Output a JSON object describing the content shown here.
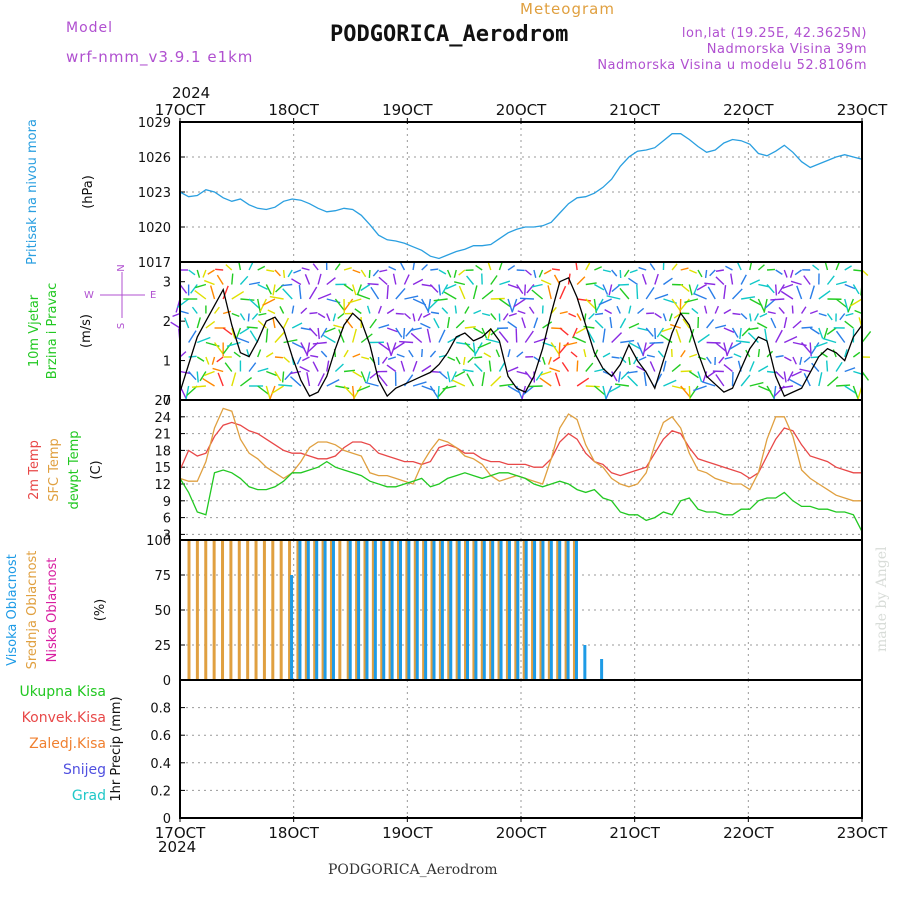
{
  "header": {
    "model_label": "Model",
    "model_value": "wrf-nmm_v3.9.1 e1km",
    "subtitle": "Meteogram",
    "title": "PODGORICA_Aerodrom",
    "lonlat": "lon,lat (19.25E, 42.3625N)",
    "altitude": "Nadmorska Visina 39m",
    "model_altitude": "Nadmorska Visina u modelu 52.8106m",
    "footer": "PODGORICA_Aerodrom",
    "credit": "made by Angel",
    "year_top": "2024",
    "year_bottom": "2024"
  },
  "colors": {
    "pressure": "#2a9fe0",
    "wind_speed": "#000000",
    "temp2m": "#e84848",
    "sfc_temp": "#e0a040",
    "dewpt": "#22c822",
    "high_cloud": "#1e9be6",
    "mid_cloud": "#e0a040",
    "low_cloud": "#d81ea0",
    "rain_total": "#22c822",
    "rain_conv": "#e84848",
    "rain_frz": "#f08030",
    "snow": "#5050e0",
    "grad": "#20c8c8"
  },
  "chart_data": {
    "type": "line",
    "x_labels": [
      "17OCT",
      "18OCT",
      "19OCT",
      "20OCT",
      "21OCT",
      "22OCT",
      "23OCT"
    ],
    "panels": [
      {
        "id": "pressure",
        "labels": [
          "Pritisak na nivou mora"
        ],
        "unit": "(hPa)",
        "ylim": [
          1017,
          1029
        ],
        "ticks": [
          1017,
          1020,
          1023,
          1026,
          1029
        ],
        "series": [
          {
            "name": "Pritisak na nivou mora",
            "color_key": "pressure",
            "values": [
              1023.0,
              1022.6,
              1022.7,
              1023.2,
              1023.0,
              1022.5,
              1022.2,
              1022.4,
              1021.9,
              1021.6,
              1021.5,
              1021.7,
              1022.2,
              1022.4,
              1022.3,
              1022.0,
              1021.6,
              1021.3,
              1021.4,
              1021.6,
              1021.5,
              1021.0,
              1020.2,
              1019.3,
              1018.9,
              1018.8,
              1018.6,
              1018.3,
              1018.0,
              1017.5,
              1017.3,
              1017.6,
              1017.9,
              1018.1,
              1018.4,
              1018.4,
              1018.5,
              1019.0,
              1019.5,
              1019.8,
              1020.0,
              1020.0,
              1020.1,
              1020.4,
              1021.2,
              1022.0,
              1022.5,
              1022.6,
              1022.9,
              1023.4,
              1024.1,
              1025.2,
              1026.0,
              1026.5,
              1026.6,
              1026.8,
              1027.4,
              1028.0,
              1028.0,
              1027.5,
              1026.9,
              1026.4,
              1026.6,
              1027.2,
              1027.5,
              1027.4,
              1027.1,
              1026.3,
              1026.1,
              1026.5,
              1027.0,
              1026.4,
              1025.6,
              1025.1,
              1025.4,
              1025.7,
              1026.0,
              1026.2,
              1026.0,
              1025.8
            ]
          }
        ]
      },
      {
        "id": "wind",
        "labels": [
          "10m Vjetar",
          "Brzina i Pravac"
        ],
        "unit": "(m/s)",
        "ylim": [
          0,
          3.5
        ],
        "ticks": [
          0,
          1,
          2,
          3
        ],
        "direction_legend": [
          "W",
          "E",
          "N",
          "S"
        ],
        "series": [
          {
            "name": "Brzina",
            "color_key": "wind_speed",
            "values": [
              0.2,
              0.9,
              1.6,
              2.0,
              2.4,
              2.8,
              1.9,
              1.2,
              1.1,
              1.5,
              2.0,
              2.1,
              1.8,
              1.1,
              0.5,
              0.1,
              0.2,
              0.6,
              1.3,
              1.9,
              2.2,
              2.0,
              1.4,
              0.5,
              0.1,
              0.3,
              0.4,
              0.5,
              0.6,
              0.7,
              0.9,
              1.2,
              1.6,
              1.7,
              1.5,
              1.6,
              1.8,
              1.5,
              0.6,
              0.3,
              0.2,
              0.6,
              1.3,
              2.2,
              3.0,
              3.1,
              2.6,
              1.9,
              1.2,
              0.8,
              0.6,
              0.9,
              1.4,
              1.0,
              0.7,
              0.3,
              1.0,
              1.7,
              2.2,
              1.9,
              1.2,
              0.6,
              0.4,
              0.2,
              0.3,
              0.8,
              1.3,
              1.6,
              1.5,
              0.6,
              0.1,
              0.2,
              0.3,
              0.7,
              1.1,
              1.3,
              1.2,
              1.0,
              1.6,
              1.9
            ]
          }
        ]
      },
      {
        "id": "temperature",
        "labels": [
          "2m Temp",
          "SFC Temp",
          "dewpt Temp"
        ],
        "unit": "(C)",
        "ylim": [
          2,
          27
        ],
        "ticks": [
          3,
          6,
          9,
          12,
          15,
          18,
          21,
          24,
          27
        ],
        "series": [
          {
            "name": "2m Temp",
            "color_key": "temp2m",
            "values": [
              14.5,
              18.0,
              17.0,
              17.5,
              20.5,
              22.5,
              23.0,
              22.5,
              21.5,
              21.0,
              20.0,
              19.0,
              18.0,
              17.5,
              17.5,
              17.0,
              16.5,
              16.5,
              17.0,
              18.5,
              19.5,
              19.5,
              19.0,
              17.5,
              17.0,
              16.5,
              16.0,
              16.0,
              15.5,
              16.0,
              18.5,
              19.0,
              18.5,
              17.5,
              17.5,
              16.5,
              16.0,
              16.0,
              15.5,
              15.5,
              15.5,
              15.0,
              15.0,
              16.5,
              19.5,
              21.0,
              20.0,
              17.5,
              16.0,
              15.5,
              14.0,
              13.5,
              14.0,
              14.5,
              15.0,
              17.5,
              20.0,
              21.5,
              21.0,
              18.5,
              16.5,
              16.0,
              15.5,
              15.0,
              14.5,
              14.0,
              13.0,
              14.0,
              17.0,
              20.0,
              22.0,
              21.5,
              19.0,
              17.0,
              16.5,
              16.0,
              15.0,
              14.5,
              14.0,
              14.0
            ]
          },
          {
            "name": "SFC Temp",
            "color_key": "sfc_temp",
            "values": [
              13.0,
              12.5,
              12.5,
              16.0,
              22.0,
              25.5,
              25.0,
              20.0,
              17.5,
              16.5,
              15.0,
              14.0,
              13.0,
              14.0,
              16.0,
              18.5,
              19.5,
              19.5,
              19.0,
              18.0,
              17.5,
              17.0,
              14.0,
              13.5,
              13.5,
              13.0,
              12.5,
              12.0,
              15.5,
              18.0,
              20.0,
              19.5,
              18.5,
              17.0,
              16.5,
              15.5,
              13.5,
              12.5,
              13.0,
              13.5,
              13.0,
              12.5,
              12.0,
              16.5,
              22.0,
              24.5,
              23.5,
              19.0,
              16.0,
              15.0,
              13.0,
              12.0,
              11.5,
              12.0,
              14.0,
              19.0,
              23.0,
              24.0,
              22.0,
              17.5,
              14.5,
              14.0,
              13.0,
              12.5,
              12.0,
              12.0,
              11.0,
              14.0,
              20.0,
              24.0,
              24.0,
              20.5,
              14.5,
              13.0,
              12.0,
              11.0,
              10.0,
              9.5,
              9.0,
              9.0
            ]
          },
          {
            "name": "dewpt Temp",
            "color_key": "dewpt",
            "values": [
              13.0,
              10.5,
              7.0,
              6.5,
              14.0,
              14.5,
              14.0,
              13.0,
              11.5,
              11.0,
              11.0,
              11.5,
              12.5,
              14.0,
              14.0,
              14.5,
              15.0,
              16.0,
              15.0,
              14.5,
              14.0,
              13.5,
              12.5,
              12.0,
              11.5,
              11.5,
              12.0,
              12.5,
              13.0,
              11.5,
              12.0,
              13.0,
              13.5,
              14.0,
              13.5,
              13.0,
              13.5,
              14.0,
              14.0,
              13.5,
              13.0,
              12.0,
              11.5,
              12.0,
              12.5,
              12.0,
              11.0,
              10.5,
              11.0,
              9.5,
              9.0,
              7.0,
              6.5,
              6.5,
              5.5,
              6.0,
              7.0,
              6.5,
              9.0,
              9.5,
              7.5,
              7.0,
              7.0,
              6.5,
              6.5,
              7.5,
              7.5,
              9.0,
              9.5,
              9.5,
              10.5,
              9.0,
              8.0,
              8.0,
              7.5,
              7.5,
              7.0,
              7.0,
              6.5,
              3.5
            ]
          }
        ]
      },
      {
        "id": "clouds",
        "labels": [
          "Visoka Oblacnost",
          "Srednja Oblacnost",
          "Niska Oblacnost"
        ],
        "unit": "(%)",
        "ylim": [
          0,
          100
        ],
        "ticks": [
          0,
          25,
          50,
          75,
          100
        ],
        "series": [
          {
            "name": "Visoka Oblacnost",
            "color_key": "high_cloud",
            "values": [
              0,
              0,
              0,
              0,
              0,
              0,
              0,
              0,
              0,
              0,
              0,
              0,
              75,
              100,
              100,
              100,
              100,
              100,
              0,
              100,
              100,
              100,
              100,
              100,
              100,
              100,
              100,
              100,
              100,
              100,
              100,
              100,
              100,
              100,
              100,
              100,
              100,
              100,
              100,
              100,
              100,
              100,
              100,
              100,
              100,
              100,
              100,
              25,
              0,
              15,
              0,
              0,
              0,
              0,
              0,
              0,
              0,
              0,
              0,
              0,
              0,
              0,
              0,
              0,
              0,
              0,
              0,
              0,
              0,
              0,
              0,
              0,
              0,
              0,
              0,
              0,
              0,
              0,
              0,
              0
            ]
          },
          {
            "name": "Srednja Oblacnost",
            "color_key": "mid_cloud",
            "values": [
              100,
              100,
              100,
              100,
              100,
              100,
              100,
              100,
              100,
              100,
              100,
              100,
              100,
              100,
              100,
              100,
              100,
              100,
              100,
              100,
              100,
              100,
              100,
              100,
              100,
              100,
              100,
              100,
              100,
              100,
              100,
              100,
              100,
              100,
              100,
              100,
              100,
              100,
              100,
              100,
              100,
              100,
              100,
              100,
              100,
              100,
              100,
              0,
              0,
              0,
              0,
              0,
              0,
              0,
              0,
              0,
              0,
              0,
              0,
              0,
              0,
              0,
              0,
              0,
              0,
              0,
              0,
              0,
              0,
              0,
              0,
              0,
              0,
              0,
              0,
              0,
              0,
              0,
              0,
              0
            ]
          },
          {
            "name": "Niska Oblacnost",
            "color_key": "low_cloud",
            "values": [
              0,
              0,
              0,
              0,
              0,
              0,
              0,
              0,
              0,
              0,
              0,
              0,
              0,
              0,
              0,
              0,
              0,
              0,
              0,
              0,
              0,
              0,
              0,
              0,
              0,
              0,
              0,
              0,
              0,
              0,
              0,
              0,
              0,
              0,
              0,
              0,
              0,
              0,
              0,
              0,
              0,
              0,
              0,
              0,
              0,
              0,
              0,
              0,
              0,
              0,
              0,
              0,
              0,
              0,
              0,
              0,
              0,
              0,
              0,
              0,
              0,
              0,
              0,
              0,
              0,
              0,
              0,
              0,
              0,
              0,
              0,
              0,
              0,
              0,
              0,
              0,
              0,
              0,
              0,
              0
            ]
          }
        ]
      },
      {
        "id": "precip",
        "labels": [
          "Ukupna Kisa",
          "Konvek.Kisa",
          "Zaledj.Kisa",
          "Snijeg",
          "Grad"
        ],
        "unit": "1hr Precip (mm)",
        "ylim": [
          0,
          1
        ],
        "ticks": [
          0,
          0.2,
          0.4,
          0.6,
          0.8
        ],
        "series": [
          {
            "name": "Ukupna Kisa",
            "color_key": "rain_total",
            "values": []
          }
        ]
      }
    ]
  }
}
